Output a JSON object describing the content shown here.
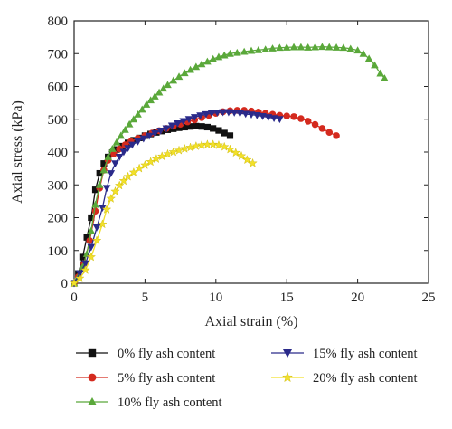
{
  "chart_data": {
    "type": "line",
    "xlabel": "Axial strain (%)",
    "ylabel": "Axial stress (kPa)",
    "xlim": [
      0,
      25
    ],
    "ylim": [
      0,
      800
    ],
    "xticks": [
      "0",
      "5",
      "10",
      "15",
      "20",
      "25"
    ],
    "yticks": [
      "0",
      "100",
      "200",
      "300",
      "400",
      "500",
      "600",
      "700",
      "800"
    ],
    "grid": false,
    "legend_position": "bottom",
    "series": [
      {
        "name": "0% fly ash content",
        "color": "#111111",
        "marker": "square",
        "x": [
          0,
          0.3,
          0.6,
          0.9,
          1.2,
          1.5,
          1.8,
          2.1,
          2.4,
          2.7,
          3.0,
          3.4,
          3.8,
          4.2,
          4.6,
          5.0,
          5.4,
          5.8,
          6.2,
          6.6,
          7.0,
          7.4,
          7.8,
          8.2,
          8.6,
          9.0,
          9.4,
          9.8,
          10.2,
          10.6,
          11.0
        ],
        "y": [
          0,
          30,
          80,
          140,
          200,
          285,
          335,
          365,
          385,
          398,
          408,
          418,
          428,
          436,
          443,
          450,
          455,
          460,
          464,
          468,
          471,
          474,
          476,
          478,
          479,
          478,
          476,
          472,
          466,
          458,
          450
        ]
      },
      {
        "name": "5% fly ash content",
        "color": "#d42a1e",
        "marker": "circle",
        "x": [
          0,
          0.3,
          0.7,
          1.1,
          1.5,
          1.8,
          2.1,
          2.4,
          2.8,
          3.2,
          3.6,
          4.0,
          4.5,
          5.0,
          5.5,
          6.0,
          6.5,
          7.0,
          7.5,
          8.0,
          8.5,
          9.0,
          9.5,
          10.0,
          10.5,
          11.0,
          11.5,
          12.0,
          12.5,
          13.0,
          13.5,
          14.0,
          14.5,
          15.0,
          15.5,
          16.0,
          16.5,
          17.0,
          17.5,
          18.0,
          18.5
        ],
        "y": [
          0,
          20,
          60,
          130,
          220,
          290,
          345,
          375,
          395,
          410,
          422,
          432,
          442,
          450,
          458,
          465,
          472,
          479,
          485,
          492,
          498,
          505,
          512,
          518,
          523,
          526,
          527,
          527,
          525,
          522,
          518,
          515,
          512,
          510,
          508,
          502,
          494,
          484,
          472,
          460,
          450
        ]
      },
      {
        "name": "10% fly ash content",
        "color": "#5aa83a",
        "marker": "triangle-up",
        "x": [
          0,
          0.3,
          0.6,
          0.9,
          1.2,
          1.5,
          1.8,
          2.1,
          2.4,
          2.7,
          3.0,
          3.3,
          3.6,
          3.9,
          4.2,
          4.5,
          4.8,
          5.1,
          5.4,
          5.7,
          6.0,
          6.3,
          6.6,
          7.0,
          7.4,
          7.8,
          8.2,
          8.6,
          9.0,
          9.4,
          9.8,
          10.2,
          10.6,
          11.0,
          11.5,
          12.0,
          12.5,
          13.0,
          13.5,
          14.0,
          14.5,
          15.0,
          15.5,
          16.0,
          16.5,
          17.0,
          17.5,
          18.0,
          18.5,
          19.0,
          19.5,
          20.0,
          20.4,
          20.8,
          21.2,
          21.6,
          21.9
        ],
        "y": [
          0,
          20,
          50,
          90,
          160,
          240,
          300,
          345,
          385,
          410,
          430,
          450,
          468,
          485,
          500,
          515,
          530,
          545,
          558,
          570,
          582,
          594,
          605,
          618,
          630,
          641,
          651,
          660,
          668,
          676,
          684,
          690,
          695,
          700,
          703,
          706,
          709,
          711,
          713,
          716,
          718,
          719,
          720,
          720,
          719,
          720,
          721,
          720,
          719,
          718,
          715,
          710,
          700,
          685,
          665,
          640,
          625
        ]
      },
      {
        "name": "15% fly ash content",
        "color": "#2a2a8a",
        "marker": "triangle-down",
        "x": [
          0,
          0.4,
          0.8,
          1.2,
          1.6,
          2.0,
          2.3,
          2.6,
          2.9,
          3.2,
          3.5,
          3.8,
          4.1,
          4.5,
          4.9,
          5.3,
          5.7,
          6.1,
          6.5,
          6.9,
          7.3,
          7.7,
          8.1,
          8.5,
          8.9,
          9.3,
          9.7,
          10.1,
          10.5,
          10.9,
          11.3,
          11.7,
          12.1,
          12.5,
          12.9,
          13.3,
          13.7,
          14.1,
          14.5
        ],
        "y": [
          0,
          30,
          60,
          110,
          170,
          230,
          290,
          335,
          365,
          385,
          400,
          412,
          422,
          432,
          441,
          449,
          457,
          465,
          472,
          480,
          487,
          494,
          500,
          506,
          511,
          515,
          518,
          520,
          521,
          521,
          520,
          518,
          516,
          514,
          512,
          509,
          506,
          503,
          500
        ]
      },
      {
        "name": "20% fly ash content",
        "color": "#f2e02a",
        "marker": "star",
        "x": [
          0,
          0.4,
          0.8,
          1.2,
          1.6,
          2.0,
          2.3,
          2.6,
          2.9,
          3.2,
          3.5,
          3.8,
          4.2,
          4.6,
          5.0,
          5.4,
          5.8,
          6.2,
          6.6,
          7.0,
          7.4,
          7.8,
          8.2,
          8.6,
          9.0,
          9.4,
          9.8,
          10.2,
          10.6,
          11.0,
          11.4,
          11.8,
          12.2,
          12.6
        ],
        "y": [
          0,
          15,
          40,
          80,
          130,
          180,
          225,
          258,
          280,
          298,
          312,
          325,
          338,
          350,
          360,
          370,
          379,
          387,
          394,
          400,
          405,
          410,
          414,
          418,
          421,
          423,
          423,
          421,
          416,
          408,
          398,
          388,
          376,
          366
        ]
      }
    ]
  }
}
